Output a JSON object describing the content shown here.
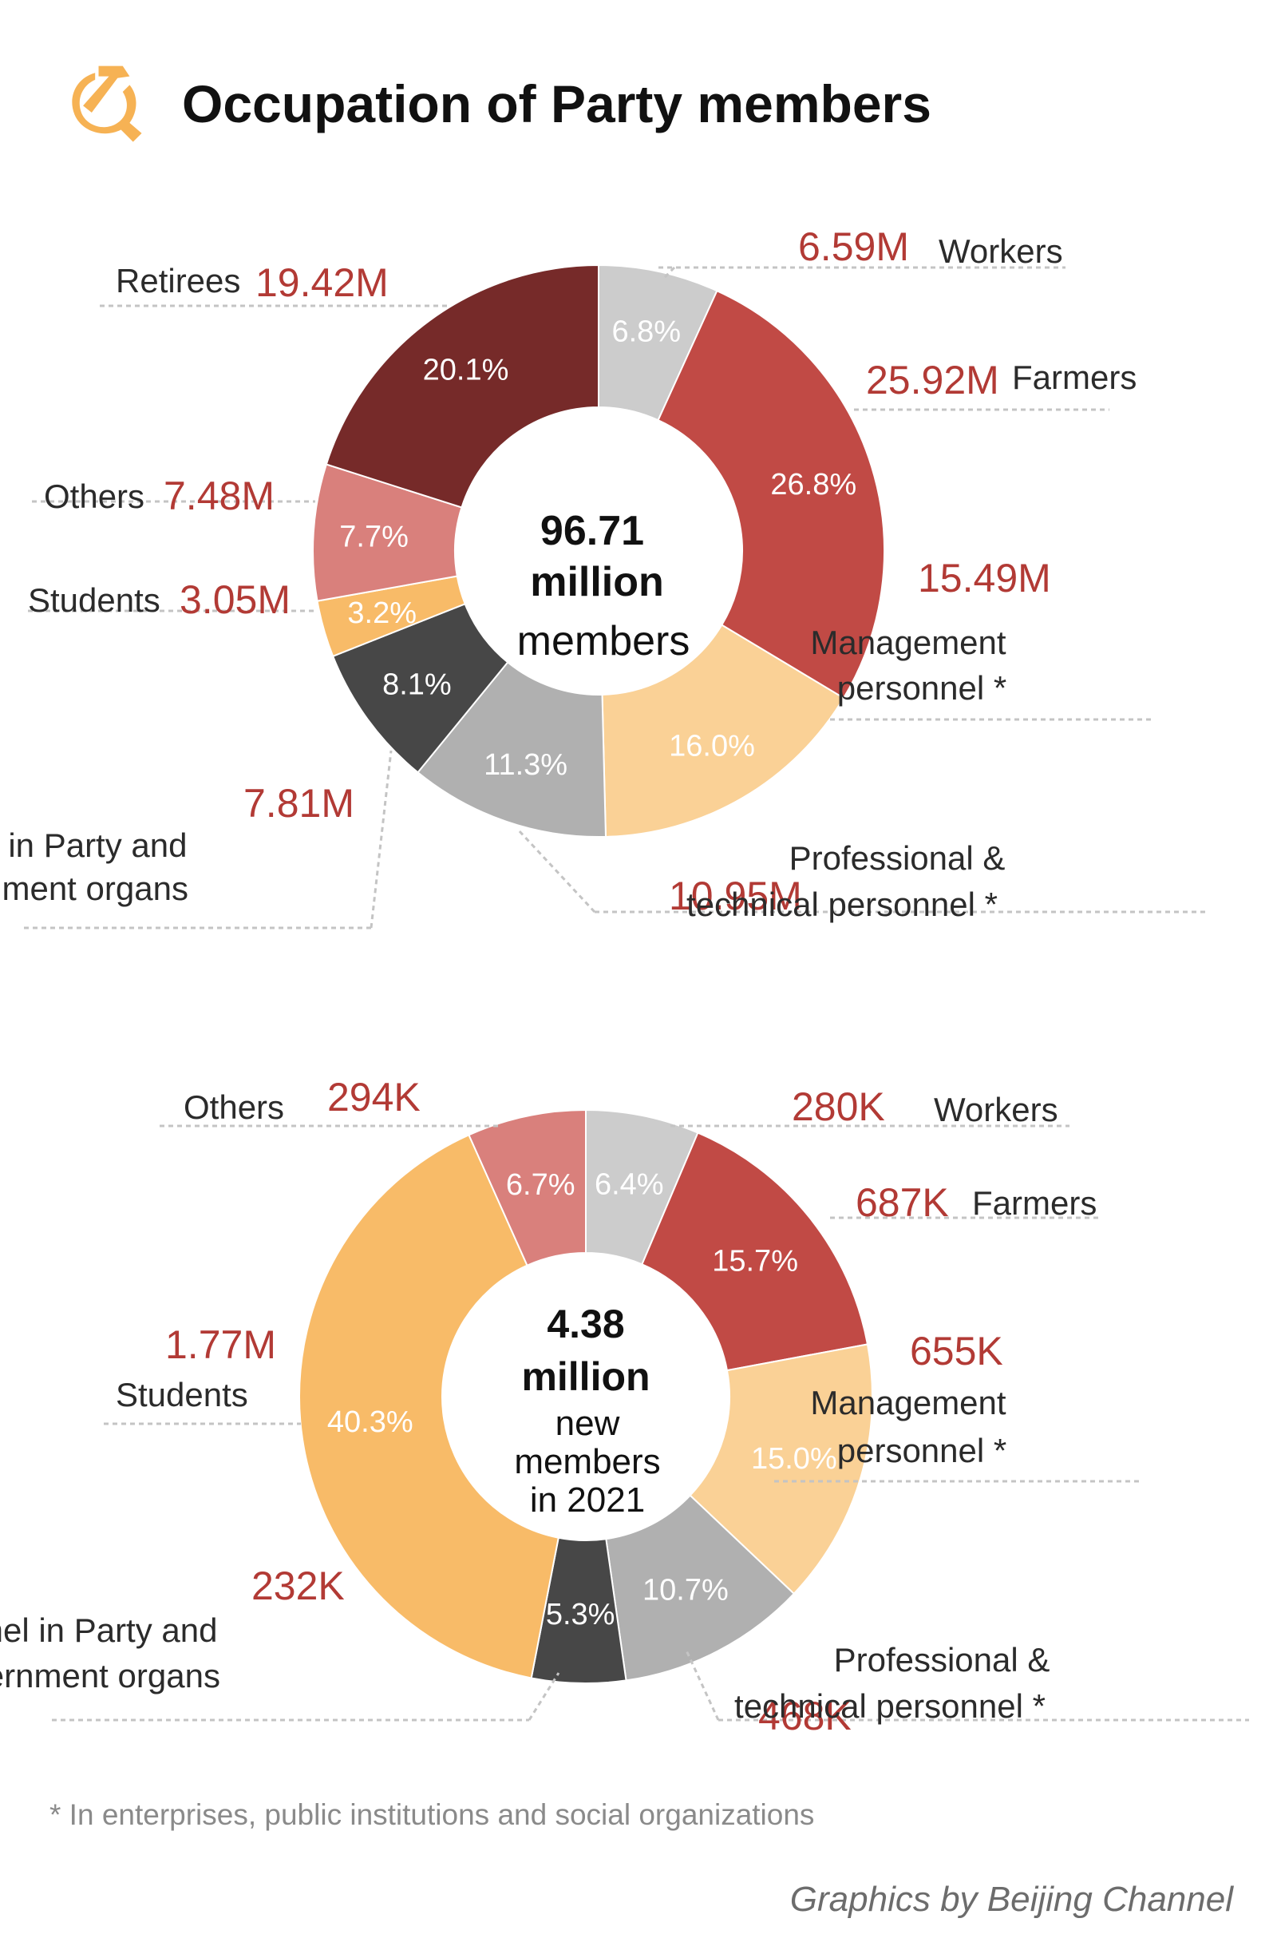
{
  "title": "Occupation of Party members",
  "icons": {
    "emblem": "hammer-and-sickle-icon"
  },
  "colors": {
    "value_text": "#b23a35",
    "label_text": "#2b2b2b",
    "leader_line": "#c4c4c4",
    "workers": "#cccccc",
    "farmers": "#c14a45",
    "management": "#fad196",
    "professional": "#b0b0b0",
    "party_gov": "#474747",
    "students": "#f8bb68",
    "others": "#d9807c",
    "retirees": "#762a29"
  },
  "footnote": "* In enterprises, public institutions and social organizations",
  "credit": "Graphics by Beijing Channel",
  "chart_data": [
    {
      "type": "pie",
      "variant": "donut",
      "center_text": {
        "value": "96.71",
        "unit": "million",
        "label": "members"
      },
      "total": 96.71,
      "slices": [
        {
          "key": "workers",
          "label_lines": [
            "Workers"
          ],
          "value": "6.59M",
          "percent": 6.8,
          "pct_label": "6.8%"
        },
        {
          "key": "farmers",
          "label_lines": [
            "Farmers"
          ],
          "value": "25.92M",
          "percent": 26.8,
          "pct_label": "26.8%"
        },
        {
          "key": "management",
          "label_lines": [
            "Management",
            "personnel *"
          ],
          "value": "15.49M",
          "percent": 16.0,
          "pct_label": "16.0%"
        },
        {
          "key": "professional",
          "label_lines": [
            "Professional &",
            "technical personnel *"
          ],
          "value": "10.95M",
          "percent": 11.3,
          "pct_label": "11.3%"
        },
        {
          "key": "party_gov",
          "label_lines": [
            "Personnel in Party and",
            "government organs"
          ],
          "value": "7.81M",
          "percent": 8.1,
          "pct_label": "8.1%"
        },
        {
          "key": "students",
          "label_lines": [
            "Students"
          ],
          "value": "3.05M",
          "percent": 3.2,
          "pct_label": "3.2%"
        },
        {
          "key": "others",
          "label_lines": [
            "Others"
          ],
          "value": "7.48M",
          "percent": 7.7,
          "pct_label": "7.7%"
        },
        {
          "key": "retirees",
          "label_lines": [
            "Retirees"
          ],
          "value": "19.42M",
          "percent": 20.1,
          "pct_label": "20.1%"
        }
      ]
    },
    {
      "type": "pie",
      "variant": "donut",
      "center_text": {
        "value": "4.38",
        "unit": "million",
        "label": "new members in 2021",
        "label_lines": [
          "new",
          "members",
          "in 2021"
        ]
      },
      "total": 4.38,
      "slices": [
        {
          "key": "workers",
          "label_lines": [
            "Workers"
          ],
          "value": "280K",
          "percent": 6.4,
          "pct_label": "6.4%"
        },
        {
          "key": "farmers",
          "label_lines": [
            "Farmers"
          ],
          "value": "687K",
          "percent": 15.7,
          "pct_label": "15.7%"
        },
        {
          "key": "management",
          "label_lines": [
            "Management",
            "personnel *"
          ],
          "value": "655K",
          "percent": 15.0,
          "pct_label": "15.0%"
        },
        {
          "key": "professional",
          "label_lines": [
            "Professional &",
            "technical personnel *"
          ],
          "value": "468K",
          "percent": 10.7,
          "pct_label": "10.7%"
        },
        {
          "key": "party_gov",
          "label_lines": [
            "Personnel in Party and",
            "government organs"
          ],
          "value": "232K",
          "percent": 5.3,
          "pct_label": "5.3%"
        },
        {
          "key": "students",
          "label_lines": [
            "Students"
          ],
          "value": "1.77M",
          "percent": 40.3,
          "pct_label": "40.3%"
        },
        {
          "key": "others",
          "label_lines": [
            "Others"
          ],
          "value": "294K",
          "percent": 6.7,
          "pct_label": "6.7%"
        }
      ]
    }
  ]
}
